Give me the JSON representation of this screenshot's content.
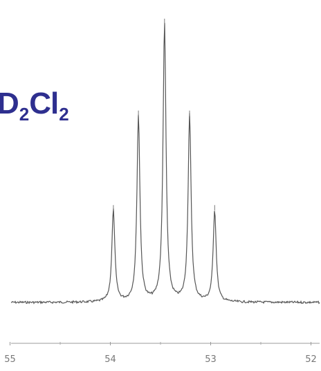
{
  "formula": {
    "main1": "D",
    "sub1": "2",
    "main2": "Cl",
    "sub2": "2",
    "color": "#2e2f8f"
  },
  "chart_data": {
    "type": "line",
    "title": "",
    "xlabel": "",
    "ylabel": "",
    "x_axis_reversed": true,
    "xlim": [
      55.1,
      51.9
    ],
    "x_ticks": [
      {
        "value": 55,
        "label": "55"
      },
      {
        "value": 54,
        "label": "54"
      },
      {
        "value": 53,
        "label": "53"
      },
      {
        "value": 52,
        "label": "52"
      }
    ],
    "peaks": [
      {
        "x": 53.97,
        "rel_intensity": 0.33
      },
      {
        "x": 53.72,
        "rel_intensity": 0.67
      },
      {
        "x": 53.46,
        "rel_intensity": 1.0
      },
      {
        "x": 53.21,
        "rel_intensity": 0.67
      },
      {
        "x": 52.96,
        "rel_intensity": 0.33
      }
    ],
    "multiplicity": "quintet",
    "grid": false,
    "line_color": "#555555"
  }
}
